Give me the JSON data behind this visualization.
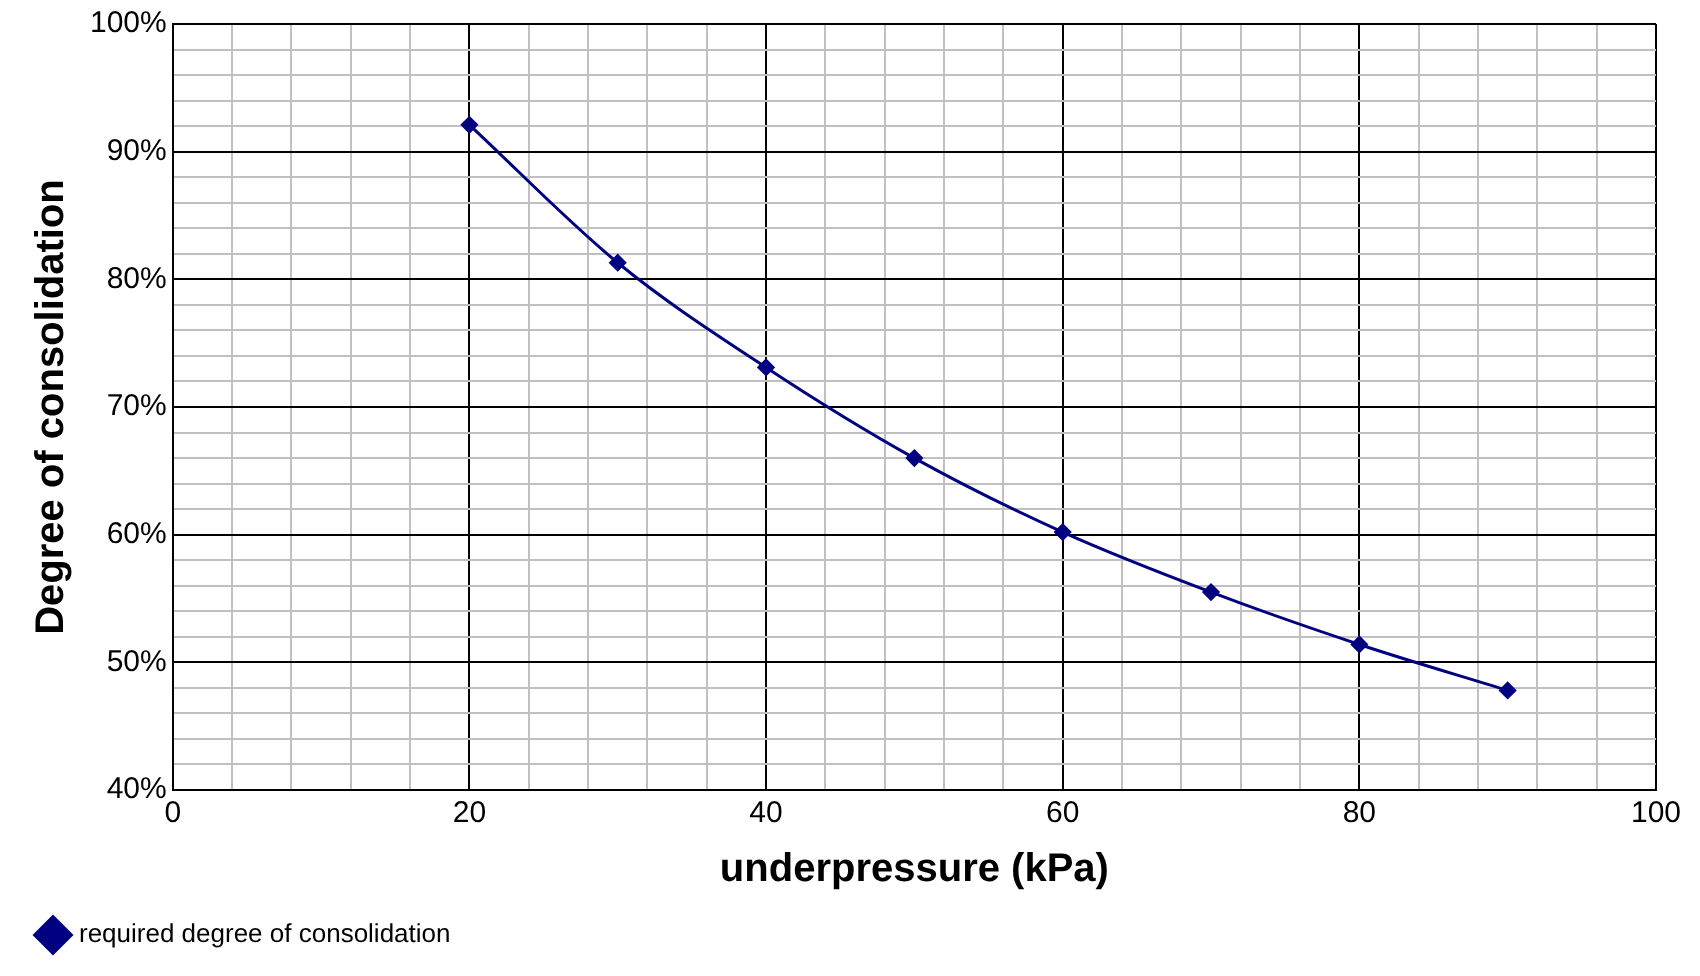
{
  "chart_data": {
    "type": "line",
    "xlabel": "underpressure (kPa)",
    "ylabel": "Degree of consolidation",
    "x": [
      20,
      30,
      40,
      50,
      60,
      70,
      80,
      90
    ],
    "series": [
      {
        "name": "required degree of consolidation",
        "color": "#000080",
        "values": [
          92.1,
          81.3,
          73.1,
          66.0,
          60.2,
          55.5,
          51.4,
          47.8
        ]
      }
    ],
    "xlim": [
      0,
      100
    ],
    "xticks": [
      0,
      {
        "value": 4,
        "label": null
      },
      {
        "value": 8,
        "label": null
      },
      {
        "value": 12,
        "label": null
      },
      {
        "value": 16,
        "label": null
      },
      20,
      {
        "value": 24,
        "label": null
      },
      {
        "value": 28,
        "label": null
      },
      {
        "value": 32,
        "label": null
      },
      {
        "value": 36,
        "label": null
      },
      40,
      {
        "value": 44,
        "label": null
      },
      {
        "value": 48,
        "label": null
      },
      {
        "value": 52,
        "label": null
      },
      {
        "value": 56,
        "label": null
      },
      60,
      {
        "value": 64,
        "label": null
      },
      {
        "value": 68,
        "label": null
      },
      {
        "value": 72,
        "label": null
      },
      {
        "value": 76,
        "label": null
      },
      80,
      {
        "value": 84,
        "label": null
      },
      {
        "value": 88,
        "label": null
      },
      {
        "value": 92,
        "label": null
      },
      {
        "value": 96,
        "label": null
      },
      100
    ],
    "ylim": [
      40,
      100
    ],
    "yticks": [
      {
        "value": 40,
        "label": "40%"
      },
      {
        "value": 42,
        "label": null
      },
      {
        "value": 44,
        "label": null
      },
      {
        "value": 46,
        "label": null
      },
      {
        "value": 48,
        "label": null
      },
      {
        "value": 50,
        "label": "50%"
      },
      {
        "value": 52,
        "label": null
      },
      {
        "value": 54,
        "label": null
      },
      {
        "value": 56,
        "label": null
      },
      {
        "value": 58,
        "label": null
      },
      {
        "value": 60,
        "label": "60%"
      },
      {
        "value": 62,
        "label": null
      },
      {
        "value": 64,
        "label": null
      },
      {
        "value": 66,
        "label": null
      },
      {
        "value": 68,
        "label": null
      },
      {
        "value": 70,
        "label": "70%"
      },
      {
        "value": 72,
        "label": null
      },
      {
        "value": 74,
        "label": null
      },
      {
        "value": 76,
        "label": null
      },
      {
        "value": 78,
        "label": null
      },
      {
        "value": 80,
        "label": "80%"
      },
      {
        "value": 82,
        "label": null
      },
      {
        "value": 84,
        "label": null
      },
      {
        "value": 86,
        "label": null
      },
      {
        "value": 88,
        "label": null
      },
      {
        "value": 90,
        "label": "90%"
      },
      {
        "value": 92,
        "label": null
      },
      {
        "value": 94,
        "label": null
      },
      {
        "value": 96,
        "label": null
      },
      {
        "value": 98,
        "label": null
      },
      {
        "value": 100,
        "label": "100%"
      }
    ],
    "grid": true,
    "legend": "bottom left",
    "marker": "diamond",
    "line_style": "solid"
  }
}
